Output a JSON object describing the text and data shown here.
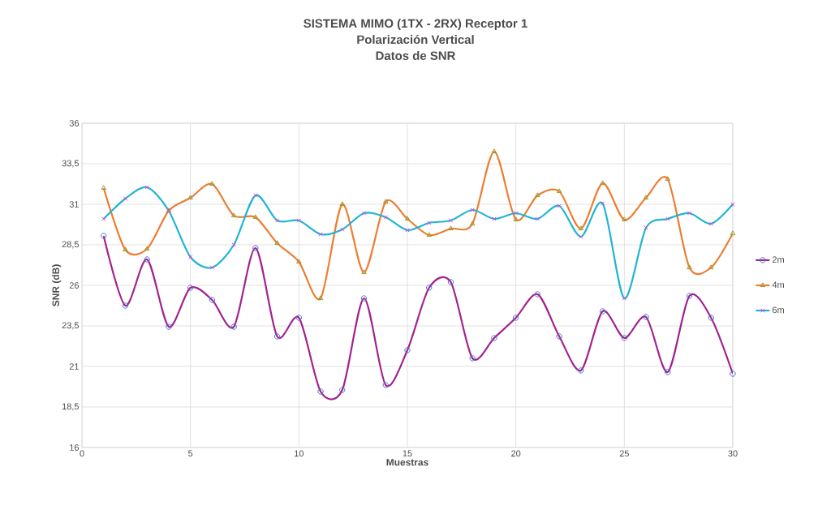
{
  "chart_data": {
    "type": "line",
    "title": "SISTEMA MIMO (1TX - 2RX)  Receptor 1",
    "subtitle": "Polarización Vertical\nDatos de SNR",
    "xlabel": "Muestras",
    "ylabel": "SNR (dB)",
    "x": [
      1,
      2,
      3,
      4,
      5,
      6,
      7,
      8,
      9,
      10,
      11,
      12,
      13,
      14,
      15,
      16,
      17,
      18,
      19,
      20,
      21,
      22,
      23,
      24,
      25,
      26,
      27,
      28,
      29,
      30
    ],
    "series": [
      {
        "name": "2m",
        "color": "#a2228f",
        "marker": "circle",
        "values": [
          29.05,
          24.75,
          27.6,
          23.45,
          25.85,
          25.1,
          23.45,
          28.3,
          22.85,
          24.0,
          19.45,
          19.55,
          25.2,
          19.85,
          22.0,
          25.85,
          26.2,
          21.5,
          22.75,
          24.0,
          25.45,
          22.85,
          20.75,
          24.4,
          22.75,
          24.05,
          20.65,
          25.35,
          24.0,
          20.55
        ]
      },
      {
        "name": "4m",
        "color": "#ed7d31",
        "marker": "triangle",
        "values": [
          32.0,
          28.2,
          28.25,
          30.6,
          31.4,
          32.25,
          30.3,
          30.2,
          28.6,
          27.45,
          25.2,
          31.0,
          26.8,
          31.15,
          30.1,
          29.1,
          29.5,
          29.8,
          34.25,
          30.05,
          31.55,
          31.8,
          29.5,
          32.3,
          30.05,
          31.4,
          32.55,
          27.1,
          27.1,
          29.2
        ]
      },
      {
        "name": "6m",
        "color": "#1fb4d4",
        "marker": "cross",
        "values": [
          30.1,
          31.35,
          32.05,
          30.6,
          27.75,
          27.1,
          28.5,
          31.55,
          30.0,
          30.0,
          29.15,
          29.45,
          30.45,
          30.2,
          29.4,
          29.85,
          30.0,
          30.65,
          30.1,
          30.45,
          30.1,
          30.9,
          29.0,
          31.05,
          25.2,
          29.55,
          30.1,
          30.45,
          29.8,
          31.0
        ]
      }
    ],
    "xlim": [
      0,
      30
    ],
    "xticks": [
      0,
      5,
      10,
      15,
      20,
      25,
      30
    ],
    "ylim": [
      16,
      36
    ],
    "yticks": [
      16,
      {
        "value": 18.5,
        "label": "18,5"
      },
      21,
      {
        "value": 23.5,
        "label": "23,5"
      },
      26,
      {
        "value": 28.5,
        "label": "28,5"
      },
      31,
      {
        "value": 33.5,
        "label": "33,5"
      },
      36
    ],
    "grid": true,
    "legend": "right",
    "line_style": "solid"
  }
}
